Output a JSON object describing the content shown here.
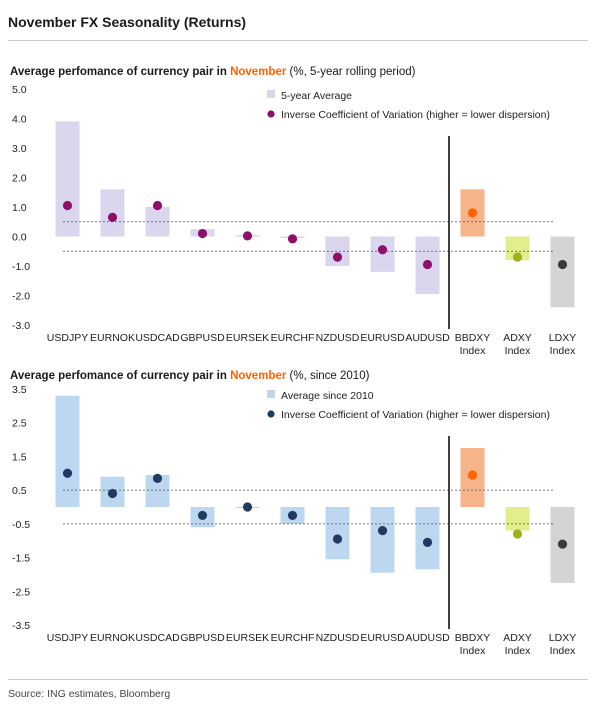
{
  "page": {
    "title": "November FX Seasonality (Returns)",
    "source": "Source: ING estimates, Bloomberg"
  },
  "colors": {
    "lavender": "#d9d6ee",
    "lightblue": "#bdd7f1",
    "orange_bar": "#f7b48a",
    "lime_bar": "#e4ed8c",
    "grey_bar": "#d4d4d4",
    "magenta_dot": "#8e0e6a",
    "navy_dot": "#1f3b63",
    "orange_dot": "#ff6200",
    "lime_dot": "#9ab21c",
    "dark_dot": "#3a3a3a"
  },
  "chart_data": [
    {
      "type": "bar",
      "heading_main": "Average perfomance of currency pair in ",
      "heading_highlight": "November",
      "heading_rest": " (%, 5-year rolling period)",
      "categories": [
        "USDJPY",
        "EURNOK",
        "USDCAD",
        "GBPUSD",
        "EURSEK",
        "EURCHF",
        "NZDUSD",
        "EURUSD",
        "AUDUSD",
        "BBDXY Index",
        "ADXY Index",
        "LDXY Index"
      ],
      "series": [
        {
          "name": "5-year Average",
          "kind": "bar",
          "values": [
            3.9,
            1.6,
            1.0,
            0.25,
            0.05,
            -0.05,
            -1.0,
            -1.2,
            -1.95,
            1.6,
            -0.8,
            -2.4
          ]
        },
        {
          "name": "Inverse Coefficient of Variation (higher = lower dispersion)",
          "kind": "dot",
          "values": [
            1.05,
            0.65,
            1.05,
            0.1,
            0.02,
            -0.08,
            -0.7,
            -0.45,
            -0.95,
            0.8,
            -0.7,
            -0.95
          ]
        }
      ],
      "bar_colors": [
        "lavender",
        "lavender",
        "lavender",
        "lavender",
        "lavender",
        "lavender",
        "lavender",
        "lavender",
        "lavender",
        "orange_bar",
        "lime_bar",
        "grey_bar"
      ],
      "dot_colors": [
        "magenta_dot",
        "magenta_dot",
        "magenta_dot",
        "magenta_dot",
        "magenta_dot",
        "magenta_dot",
        "magenta_dot",
        "magenta_dot",
        "magenta_dot",
        "orange_dot",
        "lime_dot",
        "dark_dot"
      ],
      "legend_bar_color": "lavender",
      "legend_dot_color": "magenta_dot",
      "yticks": [
        "5.0",
        "4.0",
        "3.0",
        "2.0",
        "1.0",
        "0.0",
        "-1.0",
        "-2.0",
        "-3.0"
      ],
      "ylim": [
        -3.0,
        5.0
      ],
      "dashed_lines": [
        0.5,
        -0.5
      ],
      "divider_after_index": 8,
      "legend_position": "top-center",
      "grid": false
    },
    {
      "type": "bar",
      "heading_main": "Average perfomance of currency pair in ",
      "heading_highlight": "November",
      "heading_rest": " (%, since 2010)",
      "categories": [
        "USDJPY",
        "EURNOK",
        "USDCAD",
        "GBPUSD",
        "EURSEK",
        "EURCHF",
        "NZDUSD",
        "EURUSD",
        "AUDUSD",
        "BBDXY Index",
        "ADXY Index",
        "LDXY Index"
      ],
      "series": [
        {
          "name": "Average since 2010",
          "kind": "bar",
          "values": [
            3.3,
            0.9,
            0.95,
            -0.6,
            0.0,
            -0.5,
            -1.55,
            -1.95,
            -1.85,
            1.75,
            -0.7,
            -2.25
          ]
        },
        {
          "name": "Inverse Coefficient of Variation (higher = lower dispersion)",
          "kind": "dot",
          "values": [
            1.0,
            0.4,
            0.85,
            -0.25,
            0.0,
            -0.25,
            -0.95,
            -0.7,
            -1.05,
            0.95,
            -0.8,
            -1.1
          ]
        }
      ],
      "bar_colors": [
        "lightblue",
        "lightblue",
        "lightblue",
        "lightblue",
        "lightblue",
        "lightblue",
        "lightblue",
        "lightblue",
        "lightblue",
        "orange_bar",
        "lime_bar",
        "grey_bar"
      ],
      "dot_colors": [
        "navy_dot",
        "navy_dot",
        "navy_dot",
        "navy_dot",
        "navy_dot",
        "navy_dot",
        "navy_dot",
        "navy_dot",
        "navy_dot",
        "orange_dot",
        "lime_dot",
        "dark_dot"
      ],
      "legend_bar_color": "lightblue",
      "legend_dot_color": "navy_dot",
      "yticks": [
        "3.5",
        "2.5",
        "1.5",
        "0.5",
        "-0.5",
        "-1.5",
        "-2.5",
        "-3.5"
      ],
      "ylim": [
        -3.5,
        3.5
      ],
      "dashed_lines": [
        0.5,
        -0.5
      ],
      "divider_after_index": 8,
      "legend_position": "top-center",
      "grid": false
    }
  ]
}
